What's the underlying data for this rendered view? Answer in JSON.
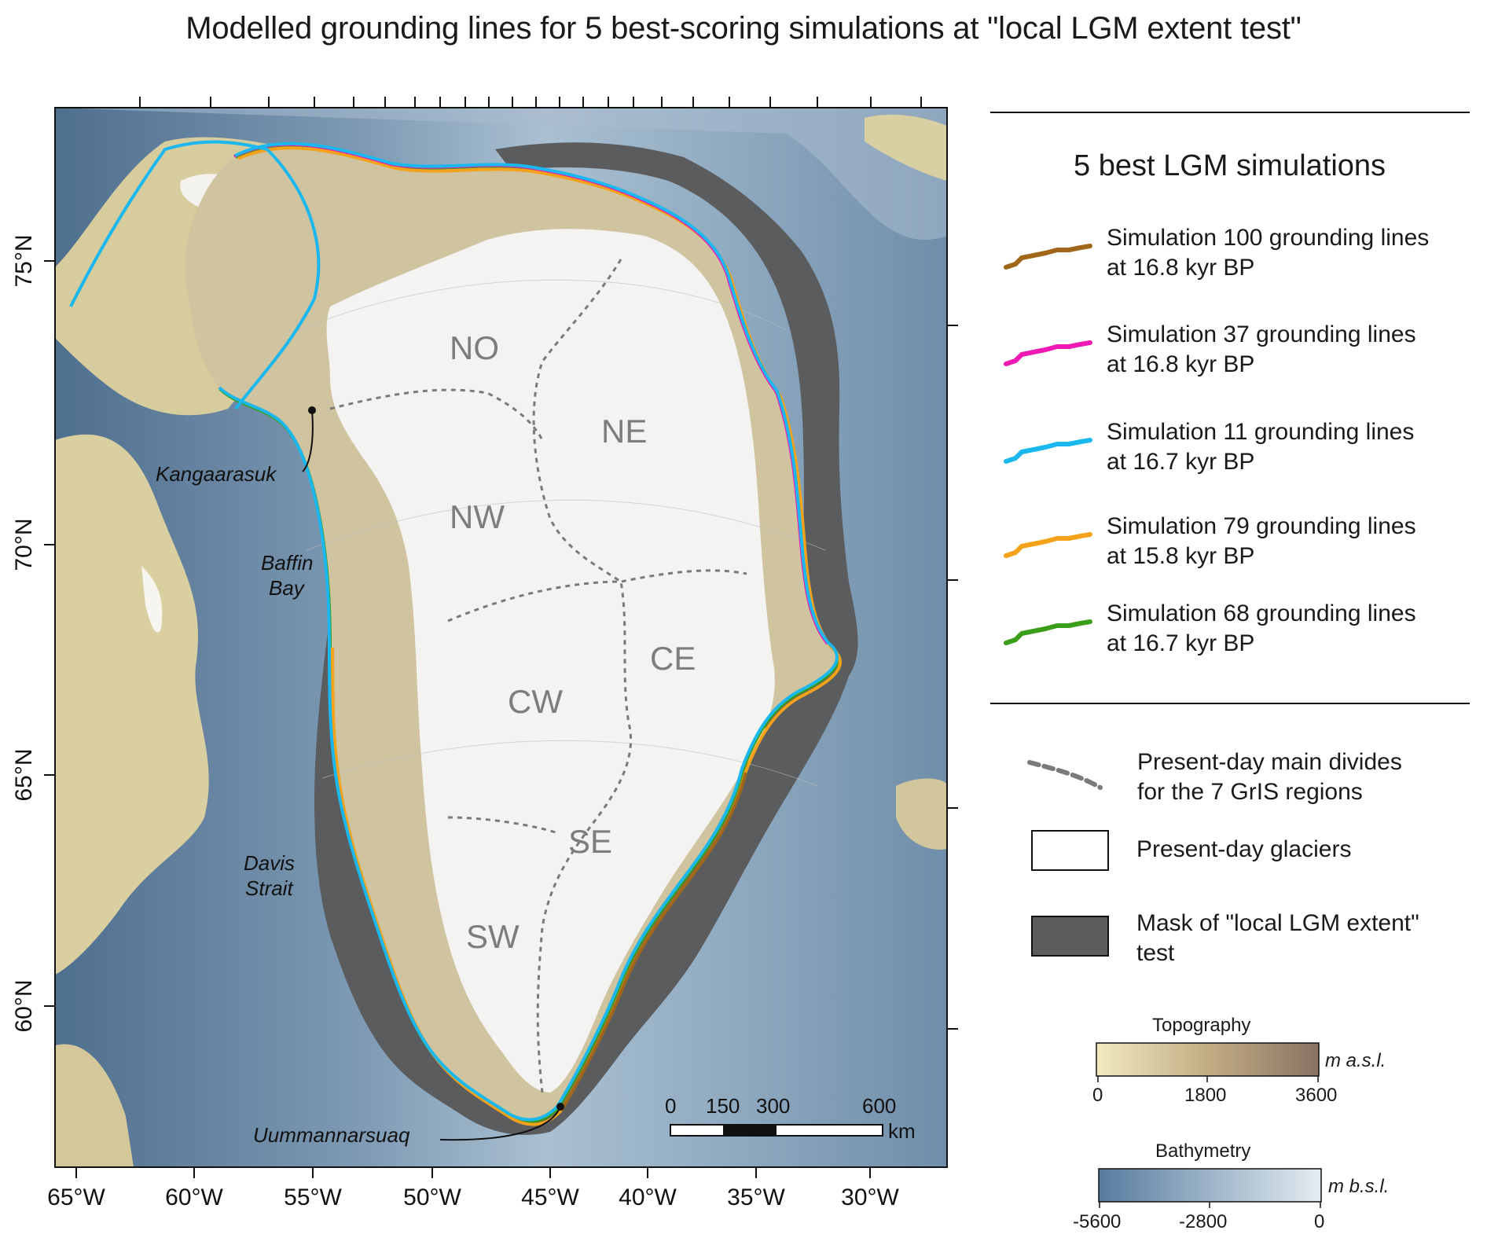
{
  "title": "Modelled grounding lines for 5 best-scoring simulations at \"local LGM extent test\"",
  "map": {
    "longitude_labels": [
      "65°W",
      "60°W",
      "55°W",
      "50°W",
      "45°W",
      "40°W",
      "35°W",
      "30°W"
    ],
    "latitude_labels": [
      "75°N",
      "70°N",
      "65°N",
      "60°N"
    ],
    "regions": [
      "NO",
      "NE",
      "NW",
      "CE",
      "CW",
      "SE",
      "SW"
    ],
    "place_names": {
      "kangaarasuk": "Kangaarasuk",
      "baffin_bay_1": "Baffin",
      "baffin_bay_2": "Bay",
      "davis_strait_1": "Davis",
      "davis_strait_2": "Strait",
      "uummannarsuaq": "Uummannarsuaq"
    },
    "scale_bar": {
      "ticks": [
        "0",
        "150",
        "300",
        "600"
      ],
      "unit": "km"
    }
  },
  "legend": {
    "heading": "5 best LGM simulations",
    "simulations": [
      {
        "line1": "Simulation 100 grounding lines",
        "line2": "at 16.8 kyr BP",
        "color": "#a0661a"
      },
      {
        "line1": "Simulation 37 grounding lines",
        "line2": "at 16.8 kyr BP",
        "color": "#f019b4"
      },
      {
        "line1": "Simulation 11 grounding lines",
        "line2": "at 16.7 kyr BP",
        "color": "#1ab8ee"
      },
      {
        "line1": "Simulation 79 grounding lines",
        "line2": "at 15.8 kyr BP",
        "color": "#f4a21a"
      },
      {
        "line1": "Simulation 68 grounding lines",
        "line2": "at 16.7 kyr BP",
        "color": "#3a9e1a"
      }
    ],
    "divides": {
      "line1": "Present-day main divides",
      "line2": "for the 7 GrIS regions"
    },
    "glaciers": {
      "label": "Present-day glaciers"
    },
    "mask": {
      "line1": "Mask of \"local LGM extent\"",
      "line2": "test",
      "color": "#5b5c5e"
    },
    "topography": {
      "title": "Topography",
      "unit": "m a.s.l.",
      "ticks": [
        "0",
        "1800",
        "3600"
      ]
    },
    "bathymetry": {
      "title": "Bathymetry",
      "unit": "m b.s.l.",
      "ticks": [
        "-5600",
        "-2800",
        "0"
      ]
    }
  }
}
